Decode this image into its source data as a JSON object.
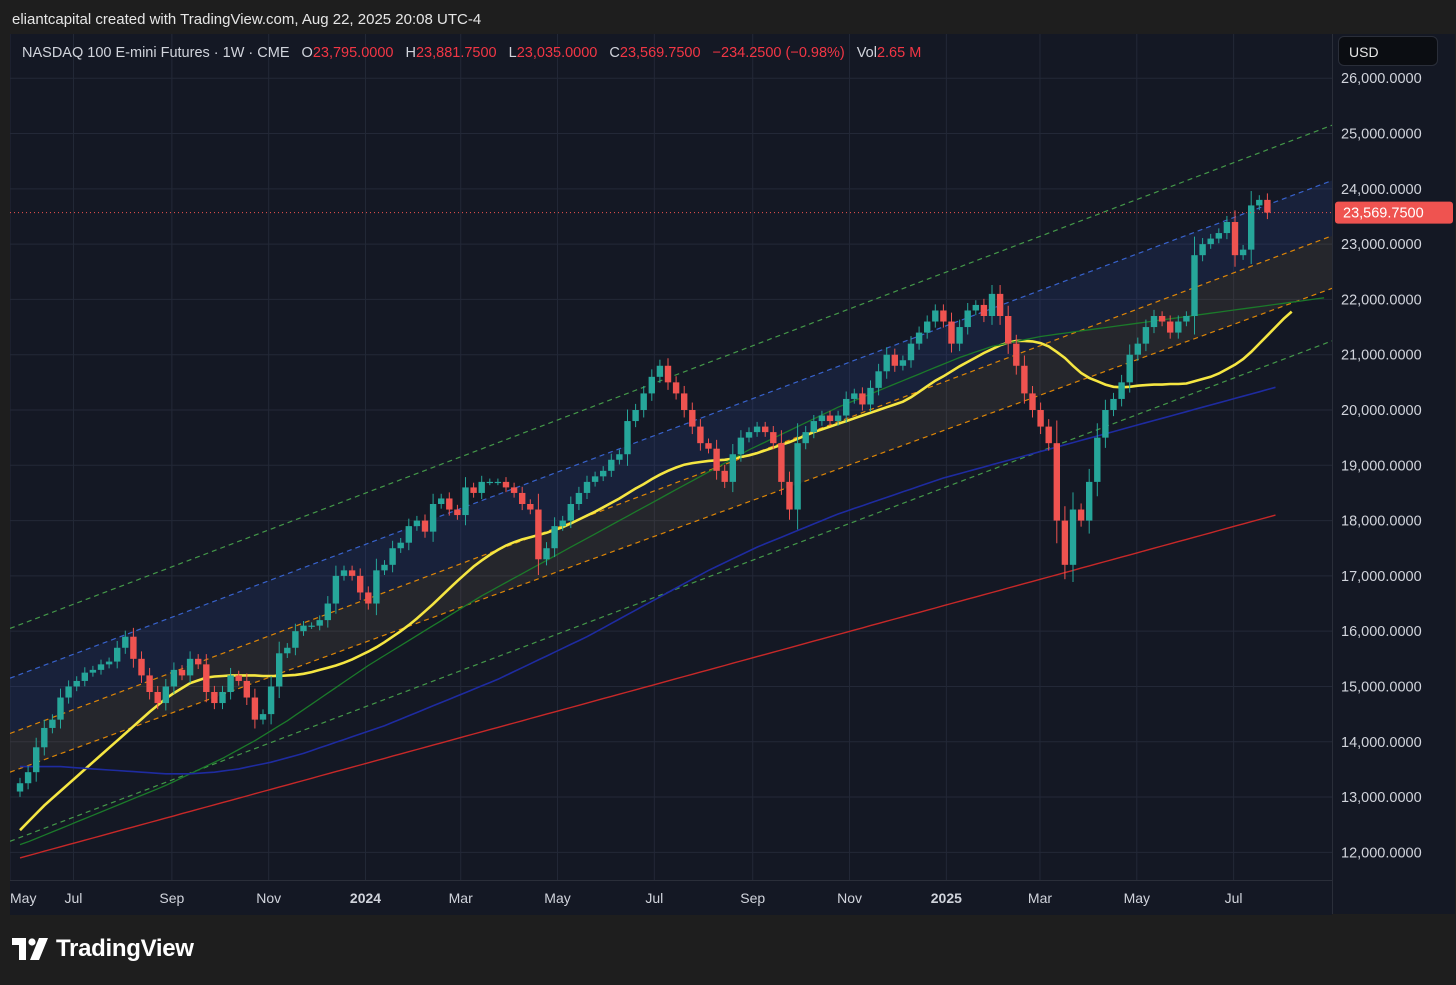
{
  "credit": "eliantcapital created with TradingView.com, Aug 22, 2025 20:08 UTC-4",
  "legend": {
    "symbol": "NASDAQ 100 E-mini Futures · 1W · CME",
    "open_label": "O",
    "open": "23,795.0000",
    "high_label": "H",
    "high": "23,881.7500",
    "low_label": "L",
    "low": "23,035.0000",
    "close_label": "C",
    "close": "23,569.7500",
    "change": "−234.2500 (−0.98%)",
    "vol_label": "Vol",
    "vol": "2.65 M"
  },
  "currency_button": "USD",
  "last_price_label": "23,569.7500",
  "brand": "TradingView",
  "colors": {
    "background": "#141824",
    "up": "#26a69a",
    "down": "#ef5350",
    "ma_fast": "#f5e642",
    "ma_green": "#1b7a2a",
    "ma_blue": "#1e2ba0",
    "ma_red": "#c62828",
    "channel_outer": "#4caf50",
    "channel_upper": "#3d6ee8",
    "channel_inner": "#ff9800"
  },
  "chart_data": {
    "type": "candlestick",
    "title": "NASDAQ 100 E-mini Futures · 1W · CME",
    "ylim": [
      11500,
      26800
    ],
    "y_ticks": [
      12000,
      13000,
      14000,
      15000,
      16000,
      17000,
      18000,
      19000,
      20000,
      21000,
      22000,
      23000,
      24000,
      25000,
      26000
    ],
    "y_tick_labels": [
      "12,000.0000",
      "13,000.0000",
      "14,000.0000",
      "15,000.0000",
      "16,000.0000",
      "17,000.0000",
      "18,000.0000",
      "19,000.0000",
      "20,000.0000",
      "21,000.0000",
      "22,000.0000",
      "23,000.0000",
      "24,000.0000",
      "25,000.0000",
      "26,000.0000"
    ],
    "x_range": [
      "2023-05-22",
      "2025-09-01"
    ],
    "x_ticks": [
      {
        "date": "2023-05-22",
        "label": "May",
        "bold": false
      },
      {
        "date": "2023-07-01",
        "label": "Jul",
        "bold": false
      },
      {
        "date": "2023-09-01",
        "label": "Sep",
        "bold": false
      },
      {
        "date": "2023-11-01",
        "label": "Nov",
        "bold": false
      },
      {
        "date": "2024-01-01",
        "label": "2024",
        "bold": true
      },
      {
        "date": "2024-03-01",
        "label": "Mar",
        "bold": false
      },
      {
        "date": "2024-05-01",
        "label": "May",
        "bold": false
      },
      {
        "date": "2024-07-01",
        "label": "Jul",
        "bold": false
      },
      {
        "date": "2024-09-01",
        "label": "Sep",
        "bold": false
      },
      {
        "date": "2024-11-01",
        "label": "Nov",
        "bold": false
      },
      {
        "date": "2025-01-01",
        "label": "2025",
        "bold": true
      },
      {
        "date": "2025-03-01",
        "label": "Mar",
        "bold": false
      },
      {
        "date": "2025-05-01",
        "label": "May",
        "bold": false
      },
      {
        "date": "2025-07-01",
        "label": "Jul",
        "bold": false
      }
    ],
    "last_price": 23569.75,
    "closes": [
      13250,
      13450,
      13900,
      14250,
      14400,
      14800,
      15000,
      15100,
      15250,
      15300,
      15400,
      15450,
      15700,
      15900,
      15500,
      15200,
      14900,
      14700,
      15000,
      15300,
      15200,
      15500,
      15400,
      14900,
      14700,
      14900,
      15200,
      15100,
      14800,
      14400,
      14500,
      15000,
      15600,
      15700,
      16000,
      16100,
      16100,
      16200,
      16500,
      17000,
      17100,
      17000,
      16700,
      16500,
      17100,
      17200,
      17500,
      17600,
      17900,
      18000,
      17800,
      18300,
      18400,
      18200,
      18100,
      18600,
      18500,
      18700,
      18700,
      18700,
      18600,
      18500,
      18300,
      18200,
      17300,
      17500,
      17900,
      18000,
      18300,
      18500,
      18700,
      18800,
      18900,
      19100,
      19200,
      19800,
      20000,
      20300,
      20600,
      20800,
      20500,
      20300,
      20000,
      19700,
      19400,
      19300,
      18900,
      18700,
      19200,
      19500,
      19600,
      19700,
      19600,
      19400,
      18700,
      18200,
      19400,
      19600,
      19800,
      19900,
      19800,
      19900,
      20200,
      20300,
      20100,
      20400,
      20700,
      21000,
      20800,
      20900,
      21200,
      21400,
      21600,
      21800,
      21600,
      21200,
      21500,
      21800,
      21900,
      21700,
      22100,
      21700,
      21200,
      20800,
      20300,
      20000,
      19700,
      19400,
      18000,
      17200,
      18200,
      18000,
      18700,
      19500,
      20000,
      20200,
      20500,
      21000,
      21200,
      21500,
      21700,
      21600,
      21400,
      21600,
      21700,
      22800,
      23000,
      23100,
      23200,
      23400,
      22800,
      22900,
      23700,
      23800,
      23570
    ],
    "series": [
      {
        "name": "",
        "values": [
          12400,
          12550,
          12700,
          12850,
          12980,
          13110,
          13240,
          13370,
          13500,
          13630,
          13760,
          13890,
          14020,
          14150,
          14280,
          14410,
          14540,
          14660,
          14780,
          14880,
          14970,
          15060,
          15110,
          15160,
          15180,
          15190,
          15200,
          15200,
          15200,
          15200,
          15190,
          15190,
          15190,
          15200,
          15210,
          15230,
          15260,
          15300,
          15340,
          15380,
          15430,
          15490,
          15560,
          15630,
          15710,
          15800,
          15900,
          16000,
          16110,
          16230,
          16360,
          16490,
          16630,
          16770,
          16910,
          17040,
          17170,
          17280,
          17380,
          17470,
          17550,
          17610,
          17660,
          17700,
          17740,
          17780,
          17830,
          17880,
          17950,
          18020,
          18090,
          18160,
          18240,
          18320,
          18400,
          18490,
          18580,
          18660,
          18750,
          18830,
          18900,
          18960,
          19010,
          19040,
          19060,
          19080,
          19090,
          19100,
          19120,
          19150,
          19180,
          19220,
          19270,
          19320,
          19370,
          19420,
          19480,
          19540,
          19600,
          19650,
          19700,
          19750,
          19800,
          19850,
          19900,
          19950,
          20000,
          20050,
          20100,
          20150,
          20230,
          20330,
          20430,
          20530,
          20610,
          20700,
          20790,
          20870,
          20950,
          21030,
          21100,
          21170,
          21220,
          21250,
          21250,
          21240,
          21210,
          21150,
          21050,
          20940,
          20800,
          20670,
          20580,
          20520,
          20460,
          20420,
          20410,
          20420,
          20440,
          20450,
          20460,
          20460,
          20470,
          20470,
          20480,
          20520,
          20560,
          20600,
          20660,
          20740,
          20820,
          20920,
          21050,
          21200,
          21350,
          21500,
          21650,
          21780
        ]
      },
      {
        "name": "",
        "values": [
          12140,
          12190,
          12250,
          12310,
          12370,
          12430,
          12490,
          12550,
          12610,
          12670,
          12730,
          12790,
          12850,
          12910,
          12970,
          13030,
          13090,
          13150,
          13210,
          13280,
          13350,
          13420,
          13490,
          13560,
          13630,
          13700,
          13780,
          13860,
          13940,
          14020,
          14110,
          14200,
          14290,
          14380,
          14480,
          14580,
          14680,
          14780,
          14880,
          14980,
          15080,
          15180,
          15280,
          15380,
          15470,
          15560,
          15650,
          15740,
          15830,
          15920,
          16010,
          16100,
          16190,
          16280,
          16370,
          16460,
          16550,
          16640,
          16720,
          16800,
          16880,
          16960,
          17040,
          17120,
          17200,
          17280,
          17360,
          17440,
          17520,
          17600,
          17680,
          17760,
          17840,
          17920,
          18000,
          18080,
          18160,
          18240,
          18320,
          18400,
          18480,
          18560,
          18640,
          18720,
          18800,
          18880,
          18960,
          19040,
          19120,
          19200,
          19280,
          19350,
          19420,
          19490,
          19560,
          19630,
          19700,
          19770,
          19840,
          19910,
          19980,
          20050,
          20110,
          20170,
          20230,
          20290,
          20350,
          20410,
          20470,
          20530,
          20590,
          20650,
          20710,
          20770,
          20830,
          20890,
          20950,
          21000,
          21050,
          21100,
          21150,
          21180,
          21210,
          21240,
          21270,
          21300,
          21330,
          21350,
          21370,
          21390,
          21410,
          21430,
          21450,
          21470,
          21490,
          21510,
          21530,
          21550,
          21570,
          21590,
          21610,
          21630,
          21650,
          21670,
          21690,
          21710,
          21730,
          21750,
          21770,
          21790,
          21810,
          21830,
          21850,
          21870,
          21890,
          21910,
          21930,
          21950,
          21970,
          21990,
          22010,
          22030
        ]
      },
      {
        "name": "",
        "values": [
          13550,
          13550,
          13550,
          13550,
          13550,
          13550,
          13540,
          13530,
          13520,
          13510,
          13500,
          13490,
          13480,
          13470,
          13460,
          13450,
          13440,
          13430,
          13420,
          13420,
          13420,
          13420,
          13430,
          13440,
          13450,
          13470,
          13490,
          13510,
          13540,
          13570,
          13600,
          13630,
          13670,
          13710,
          13750,
          13790,
          13840,
          13890,
          13940,
          13990,
          14040,
          14090,
          14140,
          14190,
          14240,
          14290,
          14350,
          14410,
          14470,
          14530,
          14590,
          14650,
          14710,
          14770,
          14830,
          14890,
          14950,
          15010,
          15070,
          15130,
          15200,
          15270,
          15340,
          15410,
          15480,
          15550,
          15620,
          15690,
          15760,
          15830,
          15900,
          15980,
          16060,
          16140,
          16220,
          16300,
          16380,
          16460,
          16540,
          16620,
          16700,
          16780,
          16860,
          16940,
          17020,
          17100,
          17170,
          17240,
          17310,
          17380,
          17450,
          17520,
          17580,
          17640,
          17700,
          17760,
          17820,
          17880,
          17940,
          18000,
          18060,
          18120,
          18170,
          18220,
          18270,
          18320,
          18370,
          18420,
          18470,
          18520,
          18570,
          18620,
          18670,
          18720,
          18770,
          18810,
          18850,
          18890,
          18930,
          18970,
          19010,
          19050,
          19090,
          19130,
          19170,
          19210,
          19250,
          19290,
          19330,
          19370,
          19410,
          19450,
          19490,
          19530,
          19570,
          19610,
          19650,
          19690,
          19730,
          19770,
          19810,
          19850,
          19890,
          19930,
          19970,
          20010,
          20050,
          20090,
          20130,
          20170,
          20210,
          20250,
          20290,
          20330,
          20370,
          20410
        ]
      },
      {
        "name": "",
        "values": [
          11900,
          11940,
          11980,
          12020,
          12060,
          12100,
          12140,
          12180,
          12220,
          12260,
          12300,
          12340,
          12380,
          12420,
          12460,
          12500,
          12540,
          12580,
          12620,
          12660,
          12700,
          12740,
          12780,
          12820,
          12860,
          12900,
          12940,
          12980,
          13020,
          13060,
          13100,
          13140,
          13180,
          13220,
          13260,
          13300,
          13340,
          13380,
          13420,
          13460,
          13500,
          13540,
          13580,
          13620,
          13660,
          13700,
          13740,
          13780,
          13820,
          13860,
          13900,
          13940,
          13980,
          14020,
          14060,
          14100,
          14140,
          14180,
          14220,
          14260,
          14300,
          14340,
          14380,
          14420,
          14460,
          14500,
          14540,
          14580,
          14620,
          14660,
          14700,
          14740,
          14780,
          14820,
          14860,
          14900,
          14940,
          14980,
          15020,
          15060,
          15100,
          15140,
          15180,
          15220,
          15260,
          15300,
          15340,
          15380,
          15420,
          15460,
          15500,
          15540,
          15580,
          15620,
          15660,
          15700,
          15740,
          15780,
          15820,
          15860,
          15900,
          15940,
          15980,
          16020,
          16060,
          16100,
          16140,
          16180,
          16220,
          16260,
          16300,
          16340,
          16380,
          16420,
          16460,
          16500,
          16540,
          16580,
          16620,
          16660,
          16700,
          16740,
          16780,
          16820,
          16860,
          16900,
          16940,
          16980,
          17020,
          17060,
          17100,
          17140,
          17180,
          17220,
          17260,
          17300,
          17340,
          17380,
          17420,
          17460,
          17500,
          17540,
          17580,
          17620,
          17660,
          17700,
          17740,
          17780,
          17820,
          17860,
          17900,
          17940,
          17980,
          18020,
          18060,
          18100
        ]
      }
    ],
    "channels": [
      {
        "name": "",
        "start": [
          "2023-05-22",
          16050
        ],
        "end": [
          "2025-09-01",
          25150
        ],
        "style": "dashed"
      },
      {
        "name": "",
        "start": [
          "2023-05-22",
          15150
        ],
        "end": [
          "2025-09-01",
          24150
        ],
        "style": "dashed"
      },
      {
        "name": "",
        "start": [
          "2023-05-22",
          14150
        ],
        "end": [
          "2025-09-01",
          23150
        ],
        "style": "dashed"
      },
      {
        "name": "",
        "start": [
          "2023-05-22",
          13450
        ],
        "end": [
          "2025-09-01",
          22200
        ],
        "style": "dashed"
      },
      {
        "name": "",
        "start": [
          "2023-05-22",
          12200
        ],
        "end": [
          "2025-09-01",
          21250
        ],
        "style": "dashed"
      }
    ]
  }
}
